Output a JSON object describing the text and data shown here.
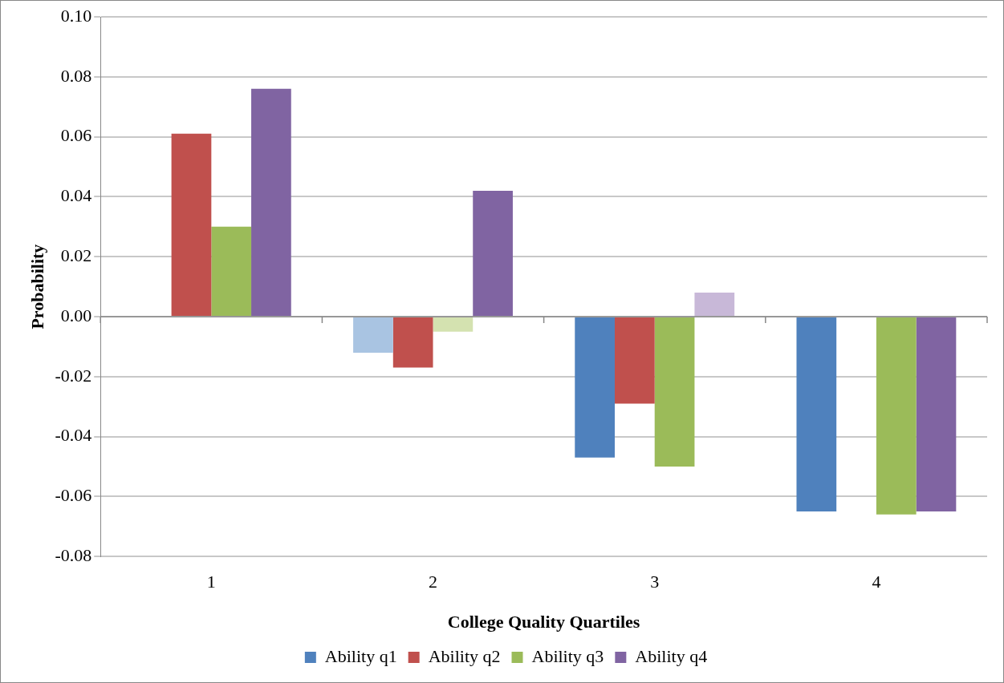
{
  "chart_data": {
    "type": "bar",
    "xlabel": "College Quality Quartiles",
    "ylabel": "Probability",
    "categories": [
      "1",
      "2",
      "3",
      "4"
    ],
    "series": [
      {
        "name": "Ability q1",
        "color": "#4f81bd",
        "colors": [
          "#4f81bd",
          "#a9c4e2",
          "#4f81bd",
          "#4f81bd"
        ],
        "values": [
          null,
          -0.012,
          -0.047,
          -0.065
        ]
      },
      {
        "name": "Ability q2",
        "color": "#c0504d",
        "values": [
          0.061,
          -0.017,
          -0.029,
          null
        ]
      },
      {
        "name": "Ability q3",
        "color": "#9bbb59",
        "colors": [
          "#9bbb59",
          "#d4e2b0",
          "#9bbb59",
          "#9bbb59"
        ],
        "values": [
          0.03,
          -0.005,
          -0.05,
          -0.066
        ]
      },
      {
        "name": "Ability q4",
        "color": "#8064a2",
        "colors": [
          "#8064a2",
          "#8064a2",
          "#c8b8d8",
          "#8064a2"
        ],
        "values": [
          0.076,
          0.042,
          0.008,
          -0.065
        ]
      }
    ],
    "ylim": [
      -0.08,
      0.1
    ],
    "yticks": [
      {
        "value": -0.08,
        "label": "-0.08"
      },
      {
        "value": -0.06,
        "label": "-0.06"
      },
      {
        "value": -0.04,
        "label": "-0.04"
      },
      {
        "value": -0.02,
        "label": "-0.02"
      },
      {
        "value": 0,
        "label": "0.00"
      },
      {
        "value": 0.02,
        "label": "0.02"
      },
      {
        "value": 0.04,
        "label": "0.04"
      },
      {
        "value": 0.06,
        "label": "0.06"
      },
      {
        "value": 0.08,
        "label": "0.08"
      },
      {
        "value": 0.1,
        "label": "0.10"
      }
    ],
    "grid": "y",
    "legend": "bottom"
  }
}
